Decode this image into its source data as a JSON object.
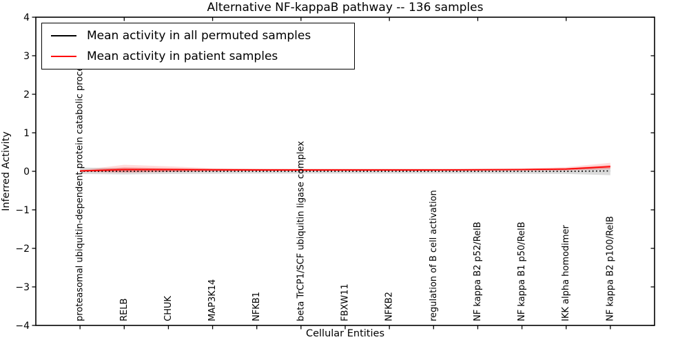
{
  "chart_data": {
    "type": "line",
    "title": "Alternative NF-kappaB pathway -- 136 samples",
    "xlabel": "Cellular Entities",
    "ylabel": "Inferred Activity",
    "ylim": [
      -4,
      4
    ],
    "yticks": [
      -4,
      -3,
      -2,
      -1,
      0,
      1,
      2,
      3,
      4
    ],
    "ytick_labels": [
      "−4",
      "−3",
      "−2",
      "−1",
      "0",
      "1",
      "2",
      "3",
      "4"
    ],
    "grid": false,
    "legend_position": "upper left",
    "categories": [
      "proteasomal ubiquitin-dependent protein catabolic process",
      "RELB",
      "CHUK",
      "MAP3K14",
      "NFKB1",
      "beta TrCP1/SCF ubiquitin ligase complex",
      "FBXW11",
      "NFKB2",
      "regulation of B cell activation",
      "NF kappa B2 p52/RelB",
      "NF kappa B1 p50/RelB",
      "IKK alpha homodimer",
      "NF kappa B2 p100/RelB"
    ],
    "series": [
      {
        "name": "Mean activity in all permuted samples",
        "color": "#000000",
        "style": "dotted",
        "values": [
          0,
          0,
          0,
          0,
          0,
          0,
          0,
          0,
          0,
          0,
          0,
          0,
          0.01
        ],
        "bands": [
          {
            "color": "rgba(0,0,0,0.14)",
            "upper": [
              0.1,
              0.08,
              0.07,
              0.065,
              0.06,
              0.06,
              0.06,
              0.06,
              0.06,
              0.06,
              0.065,
              0.07,
              0.09
            ],
            "lower": [
              -0.07,
              -0.08,
              -0.07,
              -0.065,
              -0.06,
              -0.06,
              -0.06,
              -0.06,
              -0.06,
              -0.06,
              -0.065,
              -0.07,
              -0.1
            ]
          }
        ]
      },
      {
        "name": "Mean activity in patient samples",
        "color": "#ff0000",
        "style": "solid",
        "values": [
          0.01,
          0.045,
          0.045,
          0.04,
          0.035,
          0.035,
          0.035,
          0.035,
          0.035,
          0.04,
          0.045,
          0.06,
          0.12
        ],
        "bands": [
          {
            "color": "rgba(255,0,0,0.28)",
            "upper": [
              0.02,
              0.1,
              0.08,
              0.06,
              0.055,
              0.05,
              0.05,
              0.05,
              0.05,
              0.055,
              0.06,
              0.08,
              0.16
            ],
            "lower": [
              0.0,
              -0.01,
              0.0,
              0.01,
              0.02,
              0.02,
              0.02,
              0.02,
              0.02,
              0.02,
              0.03,
              0.03,
              0.08
            ]
          },
          {
            "color": "rgba(255,0,0,0.14)",
            "upper": [
              0.03,
              0.17,
              0.13,
              0.08,
              0.07,
              0.065,
              0.065,
              0.065,
              0.065,
              0.07,
              0.08,
              0.11,
              0.22
            ],
            "lower": [
              -0.01,
              -0.04,
              -0.02,
              0.0,
              0.01,
              0.01,
              0.01,
              0.01,
              0.01,
              0.01,
              0.02,
              0.02,
              0.05
            ]
          }
        ]
      }
    ]
  }
}
